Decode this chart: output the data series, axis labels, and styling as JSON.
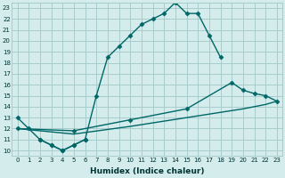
{
  "xlabel": "Humidex (Indice chaleur)",
  "bg_color": "#d4ecec",
  "grid_color": "#a8cccc",
  "line_color": "#006666",
  "xlim": [
    -0.5,
    23.5
  ],
  "ylim": [
    9.5,
    23.5
  ],
  "xticks": [
    0,
    1,
    2,
    3,
    4,
    5,
    6,
    7,
    8,
    9,
    10,
    11,
    12,
    13,
    14,
    15,
    16,
    17,
    18,
    19,
    20,
    21,
    22,
    23
  ],
  "yticks": [
    10,
    11,
    12,
    13,
    14,
    15,
    16,
    17,
    18,
    19,
    20,
    21,
    22,
    23
  ],
  "curve1_x": [
    0,
    1,
    2,
    3,
    4,
    5,
    6,
    7,
    8,
    9,
    10,
    11,
    12,
    13,
    14,
    15,
    16,
    17,
    18
  ],
  "curve1_y": [
    13,
    12,
    11,
    10.5,
    10,
    10.5,
    11,
    15,
    18.5,
    19.5,
    20.5,
    21.5,
    22,
    22.5,
    23.5,
    22.5,
    22.5,
    20.5,
    18.5
  ],
  "curve2_x": [
    2,
    3,
    4,
    5,
    6
  ],
  "curve2_y": [
    11,
    10.5,
    10,
    10.5,
    11
  ],
  "curve3_x": [
    0,
    5,
    10,
    15,
    19,
    20,
    21,
    22,
    23
  ],
  "curve3_y": [
    12,
    11.8,
    12.8,
    13.8,
    16.2,
    15.5,
    15.2,
    15.0,
    14.5
  ],
  "curve4_x": [
    0,
    5,
    10,
    15,
    20,
    21,
    22,
    23
  ],
  "curve4_y": [
    12,
    11.5,
    12.2,
    13.0,
    13.8,
    14.0,
    14.2,
    14.5
  ]
}
